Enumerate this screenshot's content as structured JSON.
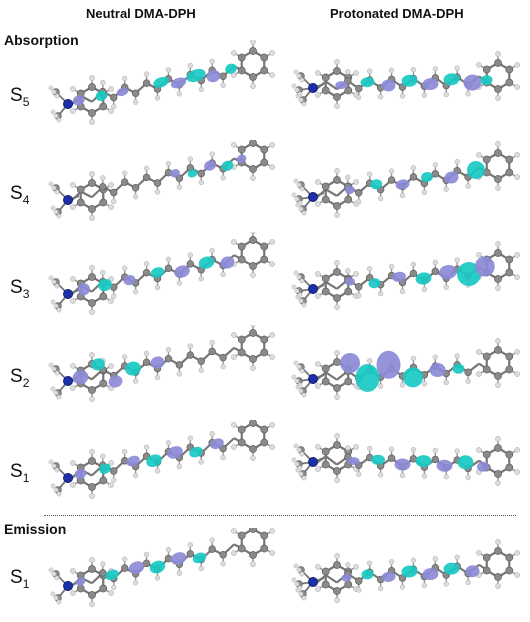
{
  "headers": {
    "neutral": "Neutral DMA-DPH",
    "protonated": "Protonated DMA-DPH"
  },
  "sections": {
    "absorption": "Absorption",
    "emission": "Emission"
  },
  "rows": [
    {
      "id": "abs-s5",
      "state": "S",
      "sub": "5"
    },
    {
      "id": "abs-s4",
      "state": "S",
      "sub": "4"
    },
    {
      "id": "abs-s3",
      "state": "S",
      "sub": "3"
    },
    {
      "id": "abs-s2",
      "state": "S",
      "sub": "2"
    },
    {
      "id": "abs-s1",
      "state": "S",
      "sub": "1"
    },
    {
      "id": "em-s1",
      "state": "S",
      "sub": "1"
    }
  ],
  "colors": {
    "carbon": "#8a8a8a",
    "hydrogen": "#dcdcdc",
    "nitrogen": "#1a2fa8",
    "lobe_positive": "#19c9c4",
    "lobe_negative": "#8c8ad6"
  }
}
